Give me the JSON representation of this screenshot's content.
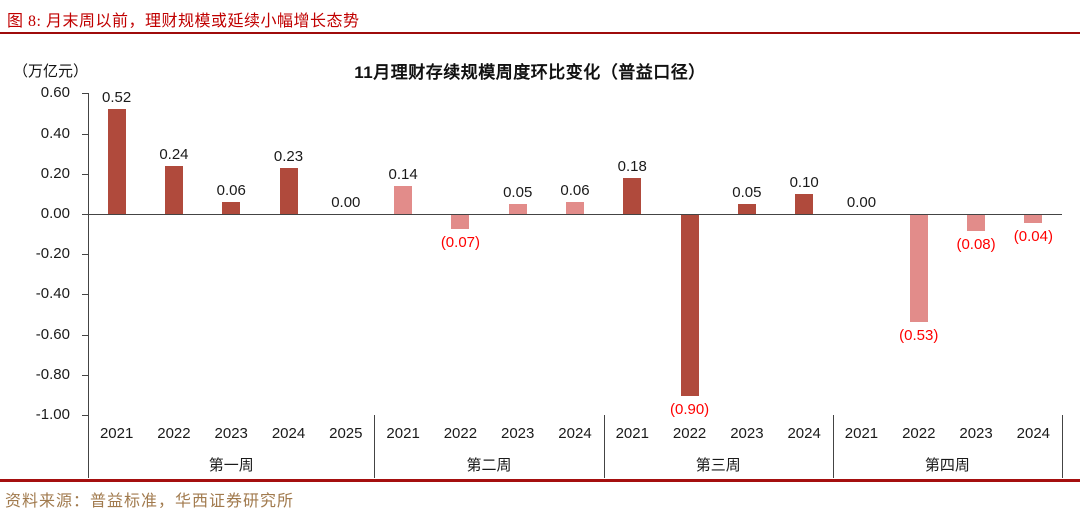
{
  "figure": {
    "caption": "图 8:  月末周以前，理财规模或延续小幅增长态势",
    "source": "资料来源：普益标准，华西证券研究所"
  },
  "chart_data": {
    "type": "bar",
    "title": "11月理财存续规模周度环比变化（普益口径）",
    "unit_label": "（万亿元）",
    "ylim": [
      -1.0,
      0.6
    ],
    "ytick_step": 0.2,
    "yticks": [
      "0.60",
      "0.40",
      "0.20",
      "0.00",
      "-0.20",
      "-0.40",
      "-0.60",
      "-0.80",
      "-1.00"
    ],
    "grid": "off",
    "legend": "none",
    "groups": [
      {
        "label": "第一周",
        "categories": [
          "2021",
          "2022",
          "2023",
          "2024",
          "2025"
        ],
        "values": [
          0.52,
          0.24,
          0.06,
          0.23,
          0.0
        ],
        "value_labels": [
          "0.52",
          "0.24",
          "0.06",
          "0.23",
          "0.00"
        ],
        "bar_color": "#b04a3c"
      },
      {
        "label": "第二周",
        "categories": [
          "2021",
          "2022",
          "2023",
          "2024"
        ],
        "values": [
          0.14,
          -0.07,
          0.05,
          0.06
        ],
        "value_labels": [
          "0.14",
          "(0.07)",
          "0.05",
          "0.06"
        ],
        "bar_color": "#e28c8a"
      },
      {
        "label": "第三周",
        "categories": [
          "2021",
          "2022",
          "2023",
          "2024"
        ],
        "values": [
          0.18,
          -0.9,
          0.05,
          0.1
        ],
        "value_labels": [
          "0.18",
          "(0.90)",
          "0.05",
          "0.10"
        ],
        "bar_color": "#b04a3c"
      },
      {
        "label": "第四周",
        "categories": [
          "2021",
          "2022",
          "2023",
          "2024"
        ],
        "values": [
          0.0,
          -0.53,
          -0.08,
          -0.04
        ],
        "value_labels": [
          "0.00",
          "(0.53)",
          "(0.08)",
          "(0.04)"
        ],
        "bar_color": "#e28c8a"
      }
    ],
    "colors": {
      "dark_bar": "#b04a3c",
      "light_bar": "#e28c8a",
      "negative_label": "#ff0000",
      "positive_label": "#1a1a1a",
      "caption_red": "#c00000",
      "rule_red": "#9e0b0b",
      "source_tan": "#a17a4d"
    }
  }
}
